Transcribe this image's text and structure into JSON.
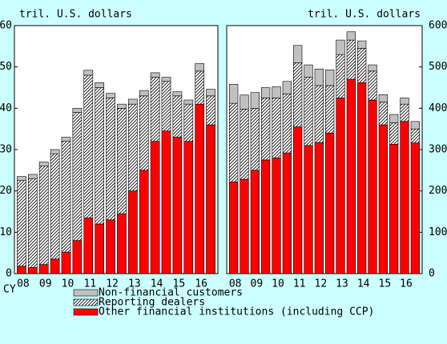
{
  "chart_data": [
    {
      "type": "bar",
      "stacked": true,
      "units_label": "tril. U.S. dollars",
      "xlabel": "CY",
      "yaxis_side": "left",
      "categories": [
        "08",
        null,
        "09",
        null,
        "10",
        null,
        "11",
        null,
        "12",
        null,
        "13",
        null,
        "14",
        null,
        "15",
        null,
        "16",
        null
      ],
      "ylim": [
        0,
        60
      ],
      "yticks": [
        0,
        10,
        20,
        30,
        40,
        50,
        60
      ],
      "series": [
        {
          "name": "Other financial institutions (including CCP)",
          "color": "#ff0000",
          "values": [
            1.8,
            1.5,
            2.2,
            3.5,
            5.2,
            8,
            13.5,
            12,
            13,
            14.5,
            20,
            25,
            32,
            34.5,
            33,
            32,
            41,
            36
          ]
        },
        {
          "name": "Reporting dealers",
          "color": "#ffffff",
          "hatch": true,
          "values": [
            20.7,
            21.5,
            23.8,
            25.5,
            26.8,
            31,
            34.5,
            33,
            29.5,
            25.5,
            21,
            18,
            15.5,
            12,
            10,
            9,
            8,
            7
          ]
        },
        {
          "name": "Non-financial customers",
          "color": "#c0c0c0",
          "values": [
            1,
            1,
            1,
            1,
            1,
            1,
            1.2,
            1.2,
            1.1,
            1,
            1.2,
            1.3,
            1.1,
            1,
            1,
            1,
            1.8,
            1.6
          ]
        }
      ]
    },
    {
      "type": "bar",
      "stacked": true,
      "units_label": "tril. U.S. dollars",
      "yaxis_side": "right",
      "categories": [
        "08",
        null,
        "09",
        null,
        "10",
        null,
        "11",
        null,
        "12",
        null,
        "13",
        null,
        "14",
        null,
        "15",
        null,
        "16",
        null
      ],
      "ylim": [
        0,
        600
      ],
      "yticks": [
        0,
        100,
        200,
        300,
        400,
        500,
        600
      ],
      "series": [
        {
          "color": "#ff0000",
          "values": [
            222,
            228,
            250,
            275,
            280,
            292,
            355,
            310,
            317,
            340,
            425,
            470,
            462,
            420,
            360,
            313,
            368,
            316
          ]
        },
        {
          "color": "#ffffff",
          "hatch": true,
          "values": [
            190,
            170,
            150,
            150,
            145,
            143,
            155,
            165,
            138,
            115,
            105,
            95,
            83,
            70,
            55,
            52,
            42,
            34
          ]
        },
        {
          "color": "#c0c0c0",
          "values": [
            46,
            34,
            38,
            25,
            27,
            30,
            42,
            30,
            40,
            38,
            35,
            20,
            18,
            15,
            18,
            20,
            15,
            18
          ]
        }
      ]
    }
  ]
}
